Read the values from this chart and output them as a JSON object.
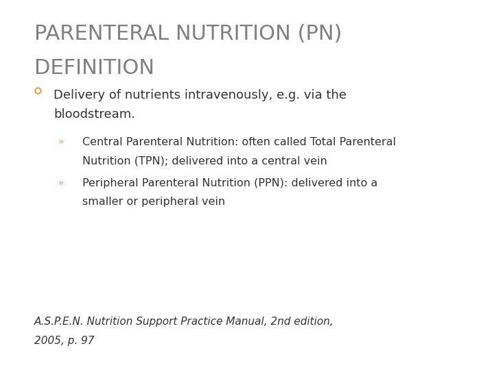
{
  "background_color": "#ffffff",
  "title_line1": "PARENTERAL NUTRITION (PN)",
  "title_line2": "DEFINITION",
  "title_color": "#808080",
  "title_fontsize": 22,
  "bullet1_text_line1": "Delivery of nutrients intravenously, e.g. via the",
  "bullet1_text_line2": "bloodstream.",
  "bullet1_color": "#333333",
  "bullet1_fontsize": 13,
  "bullet1_marker_color": "#e8a050",
  "sub_bullet1_line1": "Central Parenteral Nutrition: often called Total Parenteral",
  "sub_bullet1_line2": "Nutrition (TPN); delivered into a central vein",
  "sub_bullet2_line1": "Peripheral Parenteral Nutrition (PPN): delivered into a",
  "sub_bullet2_line2": "smaller or peripheral vein",
  "sub_bullet_color": "#333333",
  "sub_bullet_fontsize": 11.5,
  "sub_bullet_marker_color": "#e8a050",
  "footer_line1": "A.S.P.E.N. Nutrition Support Practice Manual, 2nd edition,",
  "footer_line2": "2005, p. 97",
  "footer_color": "#333333",
  "footer_fontsize": 11
}
